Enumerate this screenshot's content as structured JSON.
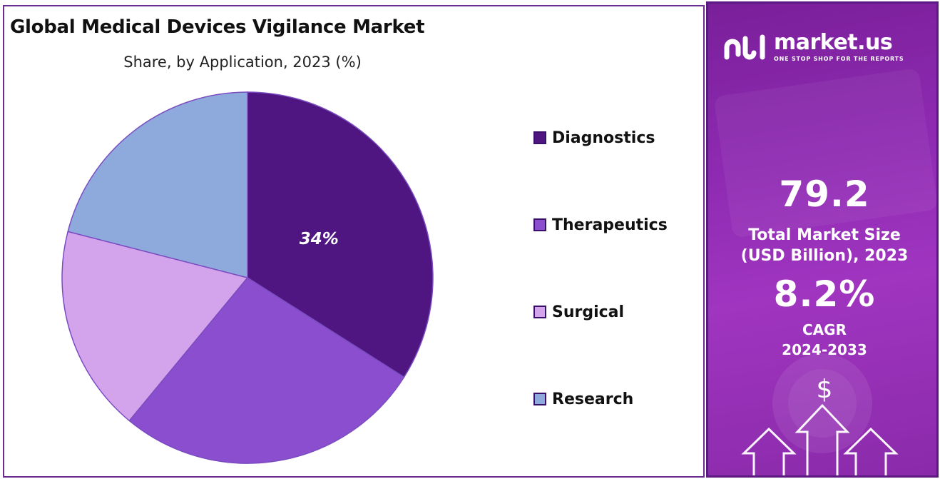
{
  "chart_data": {
    "type": "pie",
    "title": "Global Medical Devices Vigilance Market",
    "subtitle": "Share, by Application, 2023 (%)",
    "categories": [
      "Diagnostics",
      "Therapeutics",
      "Surgical",
      "Research"
    ],
    "values": [
      34,
      27,
      18,
      21
    ],
    "colors": [
      "#4f1681",
      "#8a4ecf",
      "#d3a4ec",
      "#8eaadc"
    ],
    "data_labels": [
      "34%",
      "",
      "",
      ""
    ],
    "legend_position": "right"
  },
  "side_panel": {
    "brand_name": "market.us",
    "brand_tagline": "ONE STOP SHOP FOR THE REPORTS",
    "market_size_value": "79.2",
    "market_size_label_line1": "Total Market Size",
    "market_size_label_line2": "(USD Billion), 2023",
    "cagr_value": "8.2%",
    "cagr_label_line1": "CAGR",
    "cagr_label_line2": "2024-2033",
    "dollar_glyph": "$"
  }
}
